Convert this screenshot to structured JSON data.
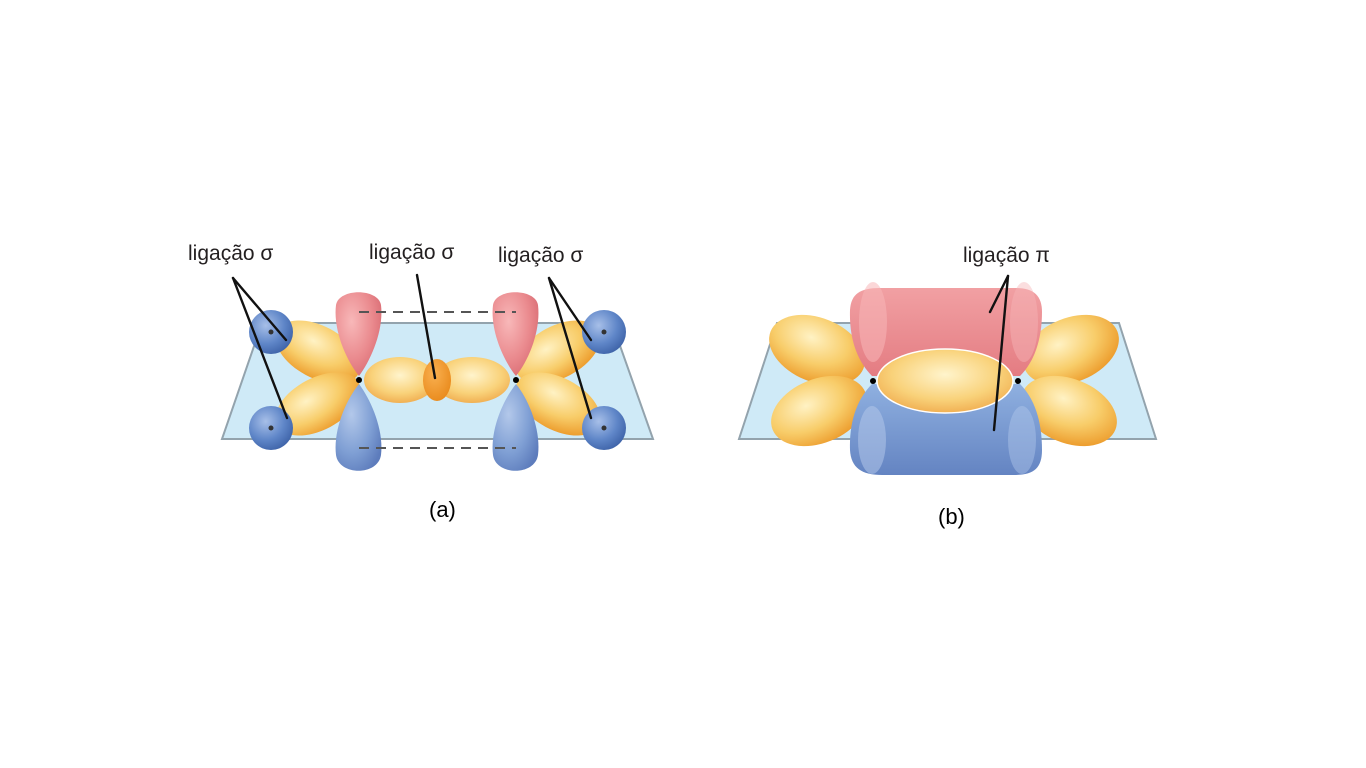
{
  "panel_a": {
    "label_left": "ligação σ",
    "label_center": "ligação σ",
    "label_right": "ligação σ",
    "caption": "(a)"
  },
  "panel_b": {
    "label_pi": "ligação π",
    "caption": "(b)"
  },
  "colors": {
    "plane": "#cfeaf7",
    "sp2_lobe": "#f7c55a",
    "p_lobe_top": "#e98a8e",
    "p_lobe_bottom": "#7d9fd3",
    "hydrogen": "#5f86c8"
  }
}
